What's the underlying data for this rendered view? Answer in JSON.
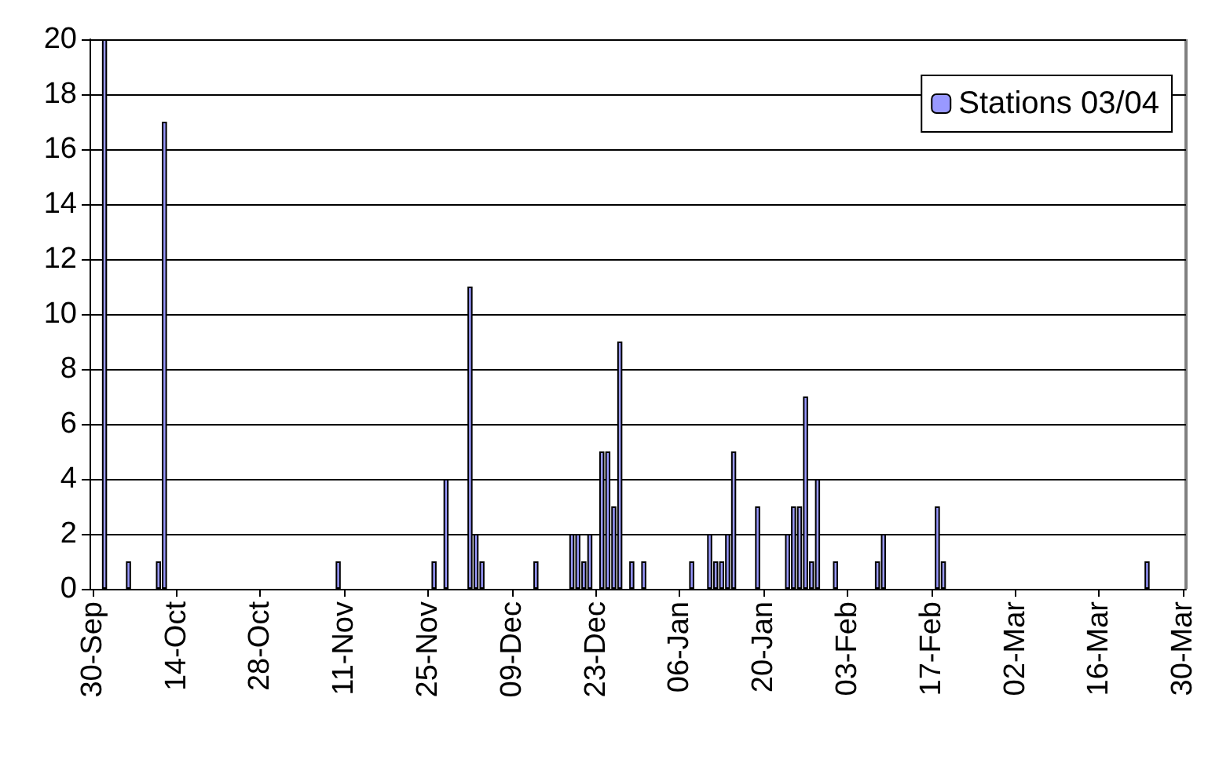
{
  "chart_data": {
    "type": "bar",
    "categories": [
      "30-Sep",
      null,
      null,
      null,
      null,
      null,
      null,
      null,
      null,
      null,
      null,
      null,
      null,
      null,
      "14-Oct",
      null,
      null,
      null,
      null,
      null,
      null,
      null,
      null,
      null,
      null,
      null,
      null,
      null,
      "28-Oct",
      null,
      null,
      null,
      null,
      null,
      null,
      null,
      null,
      null,
      null,
      null,
      null,
      null,
      "11-Nov",
      null,
      null,
      null,
      null,
      null,
      null,
      null,
      null,
      null,
      null,
      null,
      null,
      null,
      "25-Nov",
      null,
      null,
      null,
      null,
      null,
      null,
      null,
      null,
      null,
      null,
      null,
      null,
      null,
      "09-Dec",
      null,
      null,
      null,
      null,
      null,
      null,
      null,
      null,
      null,
      null,
      null,
      null,
      null,
      "23-Dec",
      null,
      null,
      null,
      null,
      null,
      null,
      null,
      null,
      null,
      null,
      null,
      null,
      null,
      "06-Jan",
      null,
      null,
      null,
      null,
      null,
      null,
      null,
      null,
      null,
      null,
      null,
      null,
      null,
      "20-Jan",
      null,
      null,
      null,
      null,
      null,
      null,
      null,
      null,
      null,
      null,
      null,
      null,
      null,
      "03-Feb",
      null,
      null,
      null,
      null,
      null,
      null,
      null,
      null,
      null,
      null,
      null,
      null,
      null,
      "17-Feb",
      null,
      null,
      null,
      null,
      null,
      null,
      null,
      null,
      null,
      null,
      null,
      null,
      null,
      "02-Mar",
      null,
      null,
      null,
      null,
      null,
      null,
      null,
      null,
      null,
      null,
      null,
      null,
      null,
      "16-Mar",
      null,
      null,
      null,
      null,
      null,
      null,
      null,
      null,
      null,
      null,
      null,
      null,
      null,
      "30-Mar"
    ],
    "series": [
      {
        "name": "Stations 03/04",
        "color": "#9999ff",
        "values": [
          null,
          null,
          20,
          null,
          null,
          null,
          1,
          null,
          null,
          null,
          null,
          1,
          17,
          null,
          null,
          null,
          null,
          null,
          null,
          null,
          null,
          null,
          null,
          null,
          null,
          null,
          null,
          null,
          null,
          null,
          null,
          null,
          null,
          null,
          null,
          null,
          null,
          null,
          null,
          null,
          null,
          1,
          null,
          null,
          null,
          null,
          null,
          null,
          null,
          null,
          null,
          null,
          null,
          null,
          null,
          null,
          null,
          1,
          null,
          4,
          null,
          null,
          null,
          11,
          2,
          1,
          null,
          null,
          null,
          null,
          null,
          null,
          null,
          null,
          1,
          null,
          null,
          null,
          null,
          null,
          2,
          2,
          1,
          2,
          null,
          5,
          5,
          3,
          9,
          null,
          1,
          null,
          1,
          null,
          null,
          null,
          null,
          null,
          null,
          null,
          1,
          null,
          null,
          2,
          1,
          1,
          2,
          5,
          null,
          null,
          null,
          3,
          null,
          null,
          null,
          null,
          2,
          3,
          3,
          7,
          1,
          4,
          null,
          null,
          1,
          null,
          null,
          null,
          null,
          null,
          null,
          1,
          2,
          null,
          null,
          null,
          null,
          null,
          null,
          null,
          null,
          3,
          1,
          null,
          null,
          null,
          null,
          null,
          null,
          null,
          null,
          null,
          null,
          null,
          null,
          null,
          null,
          null,
          null,
          null,
          null,
          null,
          null,
          null,
          null,
          null,
          null,
          null,
          null,
          null,
          null,
          null,
          null,
          null,
          null,
          null,
          1,
          null,
          null,
          null,
          null,
          null,
          null
        ]
      }
    ],
    "ylim": [
      0,
      20
    ],
    "yticks": [
      0,
      2,
      4,
      6,
      8,
      10,
      12,
      14,
      16,
      18,
      20
    ],
    "grid": "y",
    "legend": "top right"
  }
}
